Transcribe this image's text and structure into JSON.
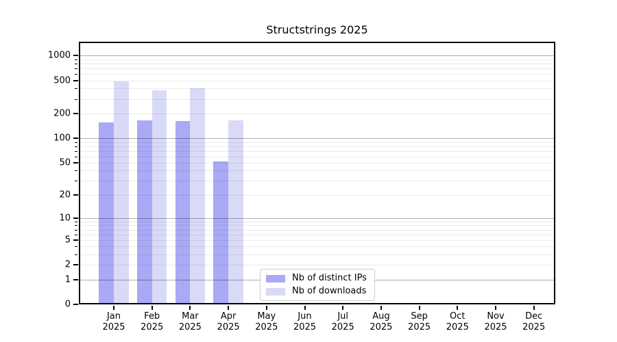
{
  "title": "Structstrings 2025",
  "chart_data": {
    "type": "bar",
    "title": "Structstrings 2025",
    "scale": "log1p",
    "categories": [
      "Jan",
      "Feb",
      "Mar",
      "Apr",
      "May",
      "Jun",
      "Jul",
      "Aug",
      "Sep",
      "Oct",
      "Nov",
      "Dec"
    ],
    "category_year": "2025",
    "series": [
      {
        "name": "Nb of distinct IPs",
        "color": "#a9a9f5",
        "values": [
          155,
          165,
          160,
          52,
          0,
          0,
          0,
          0,
          0,
          0,
          0,
          0
        ]
      },
      {
        "name": "Nb of downloads",
        "color": "#d9d9f8",
        "values": [
          490,
          380,
          400,
          166,
          0,
          0,
          0,
          0,
          0,
          0,
          0,
          0
        ]
      }
    ],
    "yticks": [
      0,
      1,
      2,
      5,
      10,
      20,
      50,
      100,
      200,
      500,
      1000
    ],
    "ylim": [
      0,
      1470
    ],
    "grid": "horizontal; major lines at 1,10,100,1000; faint minor lines at 2-9 of each decade; drawn over bars",
    "legend_position": "lower center inside plot"
  }
}
